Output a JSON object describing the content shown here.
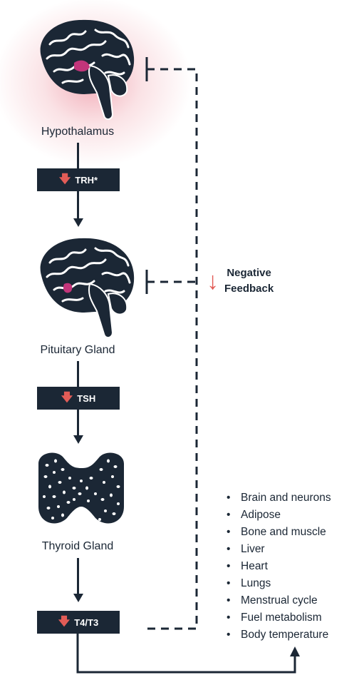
{
  "nodes": {
    "hypothalamus": "Hypothalamus",
    "pituitary": "Pituitary Gland",
    "thyroid": "Thyroid Gland"
  },
  "hormones": {
    "trh": "TRH*",
    "tsh": "TSH",
    "t4t3": "T4/T3"
  },
  "feedback": {
    "line1": "Negative",
    "line2": "Feedback"
  },
  "effects": [
    "Brain and neurons",
    "Adipose",
    "Bone and muscle",
    "Liver",
    "Heart",
    "Lungs",
    "Menstrual cycle",
    "Fuel metabolism",
    "Body temperature"
  ],
  "colors": {
    "navy": "#1b2735",
    "red": "#e25c57",
    "magenta": "#c2357a"
  }
}
